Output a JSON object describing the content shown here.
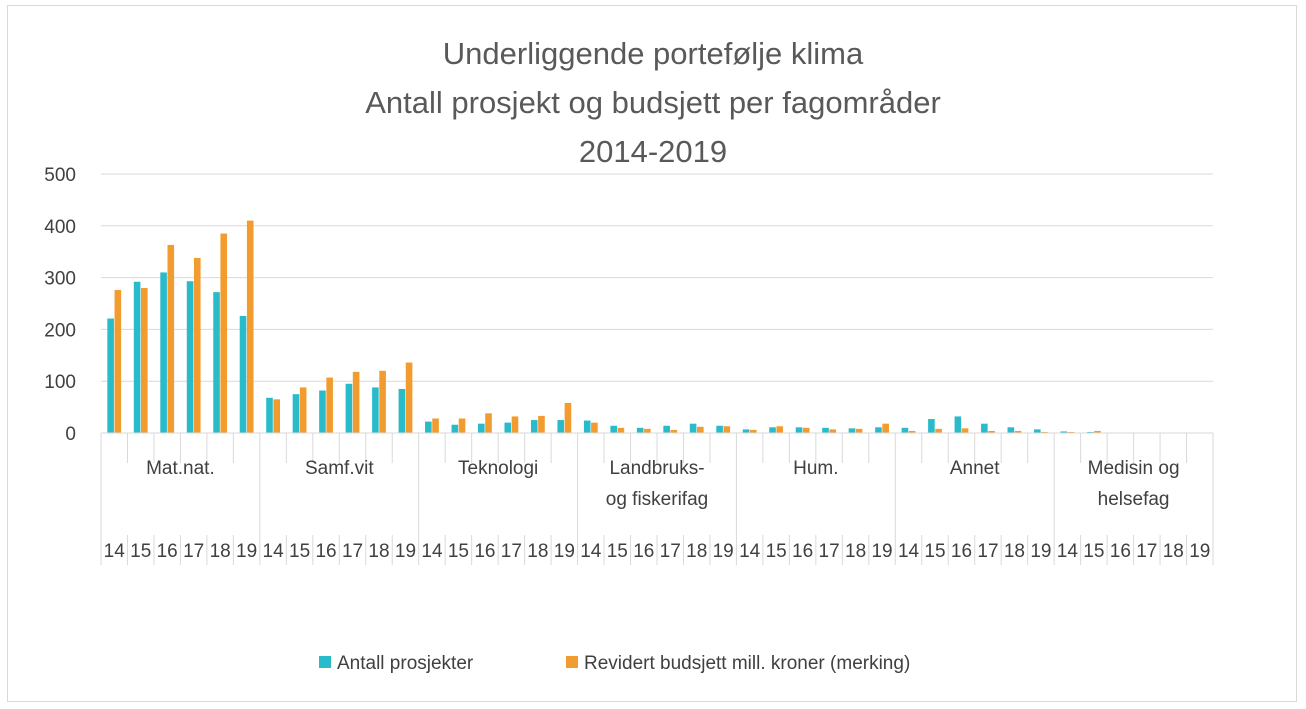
{
  "chart_data": {
    "type": "bar",
    "title": [
      "Underliggende portefølje klima",
      "Antall prosjekt og budsjett per fagområder",
      "2014-2019"
    ],
    "ylim": [
      0,
      500
    ],
    "yticks": [
      "0",
      "100",
      "200",
      "300",
      "400",
      "500"
    ],
    "ytick_values": [
      0,
      100,
      200,
      300,
      400,
      500
    ],
    "grid": true,
    "legend_position": "bottom",
    "groups": [
      {
        "name": [
          "Mat.nat."
        ],
        "years": [
          "14",
          "15",
          "16",
          "17",
          "18",
          "19"
        ]
      },
      {
        "name": [
          "Samf.vit"
        ],
        "years": [
          "14",
          "15",
          "16",
          "17",
          "18",
          "19"
        ]
      },
      {
        "name": [
          "Teknologi"
        ],
        "years": [
          "14",
          "15",
          "16",
          "17",
          "18",
          "19"
        ]
      },
      {
        "name": [
          "Landbruks-",
          "og fiskerifag"
        ],
        "years": [
          "14",
          "15",
          "16",
          "17",
          "18",
          "19"
        ]
      },
      {
        "name": [
          "Hum."
        ],
        "years": [
          "14",
          "15",
          "16",
          "17",
          "18",
          "19"
        ]
      },
      {
        "name": [
          "Annet"
        ],
        "years": [
          "14",
          "15",
          "16",
          "17",
          "18",
          "19"
        ]
      },
      {
        "name": [
          "Medisin og",
          "helsefag"
        ],
        "years": [
          "14",
          "15",
          "16",
          "17",
          "18",
          "19"
        ]
      }
    ],
    "series": [
      {
        "name": "Antall prosjekter",
        "color": "#2ABBCB",
        "values": [
          221,
          292,
          310,
          293,
          272,
          226,
          68,
          75,
          82,
          95,
          88,
          85,
          22,
          16,
          18,
          20,
          25,
          25,
          24,
          14,
          10,
          14,
          18,
          14,
          7,
          11,
          11,
          10,
          9,
          11,
          10,
          27,
          32,
          18,
          11,
          7,
          3,
          2,
          0,
          0,
          0,
          0
        ]
      },
      {
        "name": "Revidert budsjett mill. kroner (merking)",
        "color": "#F29B2E",
        "values": [
          276,
          280,
          363,
          338,
          385,
          410,
          65,
          88,
          107,
          118,
          120,
          136,
          28,
          28,
          38,
          32,
          33,
          58,
          20,
          10,
          8,
          6,
          12,
          13,
          6,
          13,
          10,
          7,
          8,
          18,
          4,
          8,
          9,
          4,
          4,
          2,
          2,
          4,
          0,
          0,
          0,
          0
        ]
      }
    ]
  }
}
